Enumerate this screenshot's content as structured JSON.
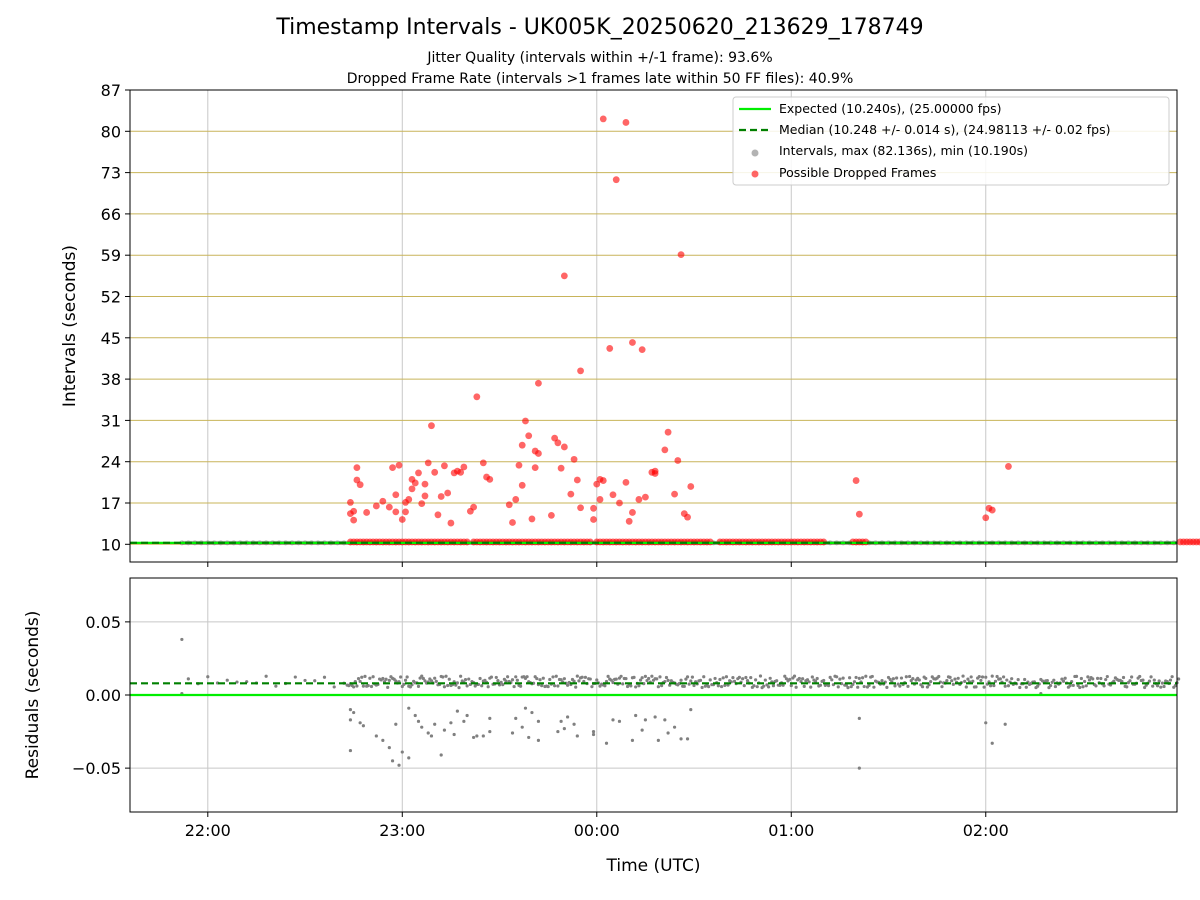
{
  "title": "Timestamp Intervals - UK005K_20250620_213629_178749",
  "subtitle_1": "Jitter Quality (intervals within +/-1 frame): 93.6%",
  "subtitle_2": "Dropped Frame Rate (intervals >1 frames late within 50 FF files): 40.9%",
  "colors": {
    "expected": "#00ee00",
    "median": "#008000",
    "intervals": "#808080",
    "dropped": "#ff0000",
    "hgrid_top": "#c8b45a",
    "vgrid": "#c8c8c8"
  },
  "chart_data": [
    {
      "type": "scatter",
      "ylabel": "Intervals (seconds)",
      "ylim": [
        7,
        87
      ],
      "yticks": [
        10,
        17,
        24,
        31,
        38,
        45,
        52,
        59,
        66,
        73,
        80,
        87
      ],
      "ytick_labels": [
        "10",
        "17",
        "24",
        "31",
        "38",
        "45",
        "52",
        "59",
        "66",
        "73",
        "80",
        "87"
      ],
      "xlim": [
        "21:36",
        "02:59"
      ],
      "xticks": [
        "22:00",
        "23:00",
        "00:00",
        "01:00",
        "02:00"
      ],
      "grid": true,
      "legend_position": "top-right",
      "legend": [
        "Expected (10.240s), (25.00000 fps)",
        "Median (10.248 +/- 0.014 s), (24.98113 +/- 0.02 fps)",
        "Intervals, max (82.136s), min (10.190s)",
        "Possible Dropped Frames"
      ],
      "series": [
        {
          "name": "Expected (10.240s), (25.00000 fps)",
          "kind": "hline",
          "y": 10.24
        },
        {
          "name": "Median (10.248 +/- 0.014 s), (24.98113 +/- 0.02 fps)",
          "kind": "hline",
          "y": 10.248
        },
        {
          "name": "Intervals, max (82.136s), min (10.190s)",
          "kind": "band",
          "x": [
            "21:52",
            "02:59"
          ],
          "y": 10.24
        },
        {
          "name": "Possible Dropped Frames",
          "kind": "scatter",
          "points": [
            [
              "22:44",
              15.2
            ],
            [
              "22:44",
              17.1
            ],
            [
              "22:45",
              14.1
            ],
            [
              "22:45",
              15.6
            ],
            [
              "22:46",
              20.9
            ],
            [
              "22:46",
              23.0
            ],
            [
              "22:47",
              20.1
            ],
            [
              "22:49",
              15.4
            ],
            [
              "22:52",
              16.5
            ],
            [
              "22:54",
              17.3
            ],
            [
              "22:56",
              16.3
            ],
            [
              "22:57",
              23.0
            ],
            [
              "22:58",
              18.4
            ],
            [
              "22:58",
              15.5
            ],
            [
              "22:59",
              23.4
            ],
            [
              "23:00",
              14.2
            ],
            [
              "23:01",
              17.1
            ],
            [
              "23:01",
              15.5
            ],
            [
              "23:02",
              17.6
            ],
            [
              "23:03",
              19.4
            ],
            [
              "23:03",
              21.0
            ],
            [
              "23:04",
              20.4
            ],
            [
              "23:05",
              22.1
            ],
            [
              "23:06",
              16.9
            ],
            [
              "23:07",
              18.2
            ],
            [
              "23:07",
              20.2
            ],
            [
              "23:08",
              23.8
            ],
            [
              "23:09",
              30.1
            ],
            [
              "23:10",
              22.2
            ],
            [
              "23:11",
              15.0
            ],
            [
              "23:12",
              18.1
            ],
            [
              "23:13",
              23.3
            ],
            [
              "23:14",
              18.7
            ],
            [
              "23:15",
              13.6
            ],
            [
              "23:16",
              22.1
            ],
            [
              "23:17",
              22.4
            ],
            [
              "23:18",
              22.2
            ],
            [
              "23:19",
              23.1
            ],
            [
              "23:21",
              15.6
            ],
            [
              "23:22",
              16.3
            ],
            [
              "23:23",
              35.0
            ],
            [
              "23:25",
              23.8
            ],
            [
              "23:26",
              21.4
            ],
            [
              "23:27",
              21.0
            ],
            [
              "23:33",
              16.7
            ],
            [
              "23:34",
              13.7
            ],
            [
              "23:35",
              17.6
            ],
            [
              "23:36",
              23.4
            ],
            [
              "23:37",
              20.0
            ],
            [
              "23:37",
              26.8
            ],
            [
              "23:38",
              30.9
            ],
            [
              "23:39",
              28.4
            ],
            [
              "23:40",
              14.3
            ],
            [
              "23:41",
              25.8
            ],
            [
              "23:41",
              23.0
            ],
            [
              "23:42",
              25.4
            ],
            [
              "23:42",
              37.3
            ],
            [
              "23:46",
              14.9
            ],
            [
              "23:47",
              28.0
            ],
            [
              "23:48",
              27.2
            ],
            [
              "23:49",
              22.9
            ],
            [
              "23:50",
              26.5
            ],
            [
              "23:50",
              55.5
            ],
            [
              "23:52",
              18.5
            ],
            [
              "23:53",
              24.4
            ],
            [
              "23:54",
              20.9
            ],
            [
              "23:55",
              16.2
            ],
            [
              "23:55",
              39.4
            ],
            [
              "23:59",
              14.2
            ],
            [
              "23:59",
              16.1
            ],
            [
              "00:00",
              20.2
            ],
            [
              "00:01",
              21.0
            ],
            [
              "00:01",
              17.6
            ],
            [
              "00:02",
              20.8
            ],
            [
              "00:02",
              82.1
            ],
            [
              "00:04",
              43.2
            ],
            [
              "00:05",
              18.4
            ],
            [
              "00:06",
              71.8
            ],
            [
              "00:07",
              17.0
            ],
            [
              "00:09",
              20.5
            ],
            [
              "00:09",
              81.5
            ],
            [
              "00:10",
              13.9
            ],
            [
              "00:11",
              15.4
            ],
            [
              "00:11",
              44.2
            ],
            [
              "00:13",
              17.6
            ],
            [
              "00:14",
              43.0
            ],
            [
              "00:15",
              18.0
            ],
            [
              "00:17",
              22.2
            ],
            [
              "00:18",
              22.0
            ],
            [
              "00:18",
              22.4
            ],
            [
              "00:21",
              26.0
            ],
            [
              "00:22",
              29.0
            ],
            [
              "00:24",
              18.5
            ],
            [
              "00:25",
              24.2
            ],
            [
              "00:26",
              59.1
            ],
            [
              "00:27",
              15.2
            ],
            [
              "00:28",
              14.6
            ],
            [
              "00:29",
              19.8
            ],
            [
              "01:20",
              20.8
            ],
            [
              "01:21",
              15.1
            ],
            [
              "02:00",
              14.5
            ],
            [
              "02:01",
              16.1
            ],
            [
              "02:02",
              15.8
            ],
            [
              "02:07",
              23.2
            ]
          ]
        }
      ]
    },
    {
      "type": "scatter",
      "ylabel": "Residuals (seconds)",
      "xlabel": "Time (UTC)",
      "ylim": [
        -0.08,
        0.08
      ],
      "yticks": [
        0.05,
        0.0,
        -0.05
      ],
      "ytick_labels": [
        "0.05",
        "0.00",
        "−0.05"
      ],
      "xlim": [
        "21:36",
        "02:59"
      ],
      "xticks": [
        "22:00",
        "23:00",
        "00:00",
        "01:00",
        "02:00"
      ],
      "xtick_labels": [
        "22:00",
        "23:00",
        "00:00",
        "01:00",
        "02:00"
      ],
      "grid": true,
      "series": [
        {
          "name": "Expected (10.240s), (25.00000 fps)",
          "kind": "hline",
          "y": 0.0
        },
        {
          "name": "Median (10.248 +/- 0.014 s), (24.98113 +/- 0.02 fps)",
          "kind": "hline",
          "y": 0.008
        },
        {
          "name": "Intervals, max (82.136s), min (10.190s)",
          "kind": "scatter",
          "band": {
            "x": [
              "21:52",
              "02:59"
            ],
            "y_range": [
              0.005,
              0.013
            ]
          },
          "points": [
            [
              "21:52",
              0.038
            ],
            [
              "21:52",
              0.001
            ],
            [
              "22:44",
              -0.01
            ],
            [
              "22:44",
              -0.017
            ],
            [
              "22:44",
              -0.038
            ],
            [
              "22:45",
              -0.012
            ],
            [
              "22:47",
              -0.019
            ],
            [
              "22:48",
              -0.021
            ],
            [
              "22:52",
              -0.028
            ],
            [
              "22:54",
              -0.031
            ],
            [
              "22:56",
              -0.036
            ],
            [
              "22:57",
              -0.045
            ],
            [
              "22:58",
              -0.02
            ],
            [
              "22:59",
              -0.048
            ],
            [
              "23:00",
              -0.039
            ],
            [
              "23:02",
              -0.043
            ],
            [
              "23:02",
              -0.009
            ],
            [
              "23:04",
              -0.014
            ],
            [
              "23:05",
              -0.018
            ],
            [
              "23:06",
              -0.022
            ],
            [
              "23:08",
              -0.026
            ],
            [
              "23:09",
              -0.028
            ],
            [
              "23:10",
              -0.02
            ],
            [
              "23:12",
              -0.041
            ],
            [
              "23:13",
              -0.024
            ],
            [
              "23:15",
              -0.019
            ],
            [
              "23:16",
              -0.027
            ],
            [
              "23:17",
              -0.011
            ],
            [
              "23:19",
              -0.018
            ],
            [
              "23:20",
              -0.014
            ],
            [
              "23:22",
              -0.029
            ],
            [
              "23:23",
              -0.028
            ],
            [
              "23:25",
              -0.028
            ],
            [
              "23:27",
              -0.025
            ],
            [
              "23:27",
              -0.016
            ],
            [
              "23:34",
              -0.026
            ],
            [
              "23:35",
              -0.016
            ],
            [
              "23:37",
              -0.022
            ],
            [
              "23:38",
              -0.009
            ],
            [
              "23:39",
              -0.029
            ],
            [
              "23:40",
              -0.012
            ],
            [
              "23:42",
              -0.018
            ],
            [
              "23:42",
              -0.031
            ],
            [
              "23:48",
              -0.025
            ],
            [
              "23:49",
              -0.018
            ],
            [
              "23:50",
              -0.023
            ],
            [
              "23:51",
              -0.015
            ],
            [
              "23:53",
              -0.02
            ],
            [
              "23:54",
              -0.028
            ],
            [
              "23:59",
              -0.027
            ],
            [
              "23:59",
              -0.025
            ],
            [
              "00:03",
              -0.033
            ],
            [
              "00:05",
              -0.017
            ],
            [
              "00:07",
              -0.018
            ],
            [
              "00:11",
              -0.031
            ],
            [
              "00:12",
              -0.014
            ],
            [
              "00:14",
              -0.024
            ],
            [
              "00:15",
              -0.017
            ],
            [
              "00:18",
              -0.015
            ],
            [
              "00:19",
              -0.031
            ],
            [
              "00:21",
              -0.017
            ],
            [
              "00:22",
              -0.026
            ],
            [
              "00:24",
              -0.022
            ],
            [
              "00:26",
              -0.03
            ],
            [
              "00:28",
              -0.03
            ],
            [
              "00:29",
              -0.01
            ],
            [
              "01:21",
              -0.016
            ],
            [
              "01:21",
              -0.05
            ],
            [
              "02:00",
              -0.019
            ],
            [
              "02:02",
              -0.033
            ],
            [
              "02:06",
              -0.02
            ],
            [
              "02:17",
              0.001
            ]
          ]
        }
      ]
    }
  ]
}
